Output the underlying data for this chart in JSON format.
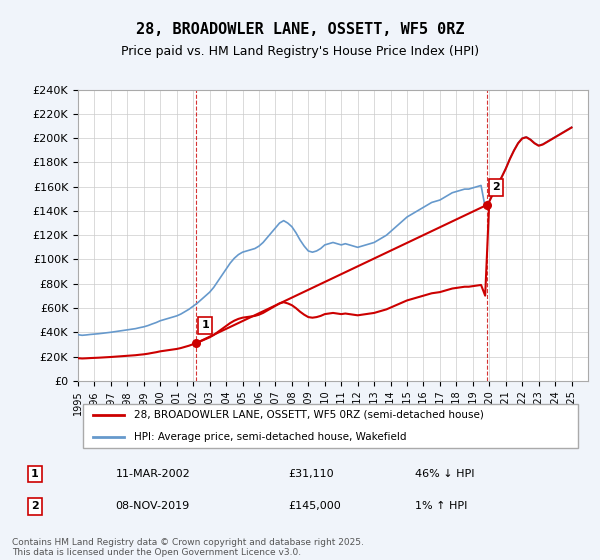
{
  "title": "28, BROADOWLER LANE, OSSETT, WF5 0RZ",
  "subtitle": "Price paid vs. HM Land Registry's House Price Index (HPI)",
  "ylabel_ticks": [
    "£0",
    "£20K",
    "£40K",
    "£60K",
    "£80K",
    "£100K",
    "£120K",
    "£140K",
    "£160K",
    "£180K",
    "£200K",
    "£220K",
    "£240K"
  ],
  "ylim": [
    0,
    240000
  ],
  "xlim_start": 1995,
  "xlim_end": 2026,
  "background_color": "#f0f4fa",
  "plot_bg_color": "#ffffff",
  "hpi_color": "#6699cc",
  "sale_color": "#cc0000",
  "dashed_color": "#cc0000",
  "legend_label_sale": "28, BROADOWLER LANE, OSSETT, WF5 0RZ (semi-detached house)",
  "legend_label_hpi": "HPI: Average price, semi-detached house, Wakefield",
  "sale1_x": 2002.19,
  "sale1_y": 31110,
  "sale2_x": 2019.86,
  "sale2_y": 145000,
  "annotation1": "1",
  "annotation2": "2",
  "table_row1": [
    "1",
    "11-MAR-2002",
    "£31,110",
    "46% ↓ HPI"
  ],
  "table_row2": [
    "2",
    "08-NOV-2019",
    "£145,000",
    "1% ↑ HPI"
  ],
  "footer": "Contains HM Land Registry data © Crown copyright and database right 2025.\nThis data is licensed under the Open Government Licence v3.0.",
  "hpi_data_x": [
    1995.0,
    1995.25,
    1995.5,
    1995.75,
    1996.0,
    1996.25,
    1996.5,
    1996.75,
    1997.0,
    1997.25,
    1997.5,
    1997.75,
    1998.0,
    1998.25,
    1998.5,
    1998.75,
    1999.0,
    1999.25,
    1999.5,
    1999.75,
    2000.0,
    2000.25,
    2000.5,
    2000.75,
    2001.0,
    2001.25,
    2001.5,
    2001.75,
    2002.0,
    2002.25,
    2002.5,
    2002.75,
    2003.0,
    2003.25,
    2003.5,
    2003.75,
    2004.0,
    2004.25,
    2004.5,
    2004.75,
    2005.0,
    2005.25,
    2005.5,
    2005.75,
    2006.0,
    2006.25,
    2006.5,
    2006.75,
    2007.0,
    2007.25,
    2007.5,
    2007.75,
    2008.0,
    2008.25,
    2008.5,
    2008.75,
    2009.0,
    2009.25,
    2009.5,
    2009.75,
    2010.0,
    2010.25,
    2010.5,
    2010.75,
    2011.0,
    2011.25,
    2011.5,
    2011.75,
    2012.0,
    2012.25,
    2012.5,
    2012.75,
    2013.0,
    2013.25,
    2013.5,
    2013.75,
    2014.0,
    2014.25,
    2014.5,
    2014.75,
    2015.0,
    2015.25,
    2015.5,
    2015.75,
    2016.0,
    2016.25,
    2016.5,
    2016.75,
    2017.0,
    2017.25,
    2017.5,
    2017.75,
    2018.0,
    2018.25,
    2018.5,
    2018.75,
    2019.0,
    2019.25,
    2019.5,
    2019.75,
    2020.0,
    2020.25,
    2020.5,
    2020.75,
    2021.0,
    2021.25,
    2021.5,
    2021.75,
    2022.0,
    2022.25,
    2022.5,
    2022.75,
    2023.0,
    2023.25,
    2023.5,
    2023.75,
    2024.0,
    2024.25,
    2024.5,
    2024.75,
    2025.0
  ],
  "hpi_data_y": [
    38000,
    37500,
    37800,
    38200,
    38500,
    38800,
    39200,
    39600,
    40000,
    40500,
    41000,
    41500,
    42000,
    42500,
    43000,
    43800,
    44500,
    45500,
    46800,
    48000,
    49500,
    50500,
    51500,
    52500,
    53500,
    55000,
    57000,
    59000,
    61500,
    64000,
    67000,
    70000,
    73000,
    77000,
    82000,
    87000,
    92000,
    97000,
    101000,
    104000,
    106000,
    107000,
    108000,
    109000,
    111000,
    114000,
    118000,
    122000,
    126000,
    130000,
    132000,
    130000,
    127000,
    122000,
    116000,
    111000,
    107000,
    106000,
    107000,
    109000,
    112000,
    113000,
    114000,
    113000,
    112000,
    113000,
    112000,
    111000,
    110000,
    111000,
    112000,
    113000,
    114000,
    116000,
    118000,
    120000,
    123000,
    126000,
    129000,
    132000,
    135000,
    137000,
    139000,
    141000,
    143000,
    145000,
    147000,
    148000,
    149000,
    151000,
    153000,
    155000,
    156000,
    157000,
    158000,
    158000,
    159000,
    160000,
    161000,
    143000,
    148000,
    155000,
    162000,
    168000,
    175000,
    183000,
    190000,
    196000,
    200000,
    201000,
    199000,
    196000,
    194000,
    195000,
    197000,
    199000,
    201000,
    203000,
    205000,
    207000,
    209000
  ],
  "sale_data_x": [
    2002.19,
    2019.86
  ],
  "sale_data_y": [
    31110,
    145000
  ]
}
